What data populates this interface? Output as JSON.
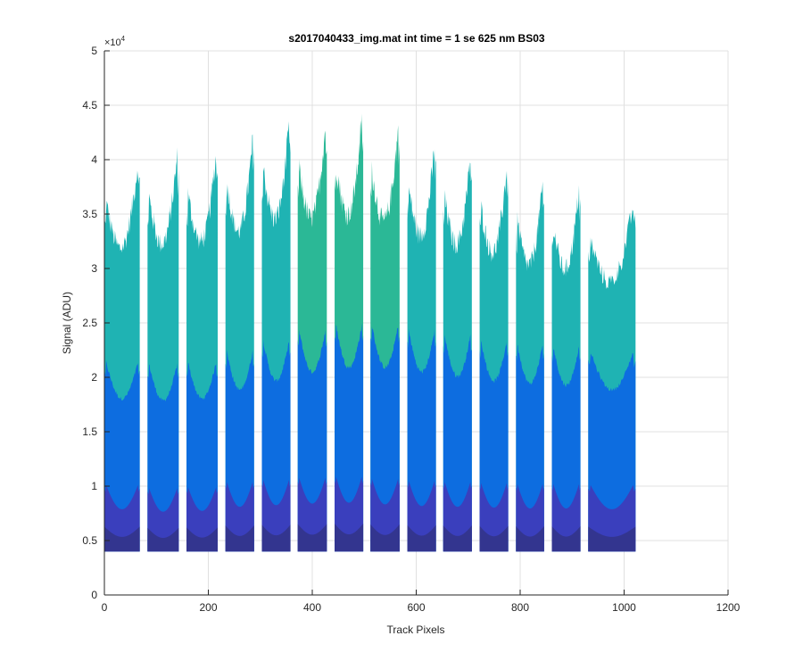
{
  "chart_data": {
    "type": "area",
    "title": "s2017040433_img.mat int time = 1 se  625 nm BS03",
    "xlabel": "Track Pixels",
    "ylabel": "Signal (ADU)",
    "y_multiplier_label": "×10",
    "y_multiplier_exponent": "4",
    "xlim": [
      0,
      1200
    ],
    "ylim": [
      0,
      50000
    ],
    "x_ticks": [
      0,
      200,
      400,
      600,
      800,
      1000,
      1200
    ],
    "x_tick_labels": [
      "0",
      "200",
      "400",
      "600",
      "800",
      "1000",
      "1200"
    ],
    "y_ticks": [
      0,
      5000,
      10000,
      15000,
      20000,
      25000,
      30000,
      35000,
      40000,
      45000,
      50000
    ],
    "y_tick_labels": [
      "0",
      "0.5",
      "1",
      "1.5",
      "2",
      "2.5",
      "3",
      "3.5",
      "4",
      "4.5",
      "5"
    ],
    "grid": true,
    "legend": "none",
    "baseline": 4000,
    "segments": [
      {
        "x_start": 0,
        "x_end": 68,
        "peak": 41000,
        "level_top": 22000,
        "level_mid": 10500
      },
      {
        "x_start": 83,
        "x_end": 143,
        "peak": 41500,
        "level_top": 21800,
        "level_mid": 10200
      },
      {
        "x_start": 158,
        "x_end": 218,
        "peak": 41800,
        "level_top": 22000,
        "level_mid": 10300
      },
      {
        "x_start": 233,
        "x_end": 288,
        "peak": 43000,
        "level_top": 23000,
        "level_mid": 10800
      },
      {
        "x_start": 303,
        "x_end": 358,
        "peak": 44500,
        "level_top": 24000,
        "level_mid": 11000
      },
      {
        "x_start": 372,
        "x_end": 428,
        "peak": 44500,
        "level_top": 25000,
        "level_mid": 11200
      },
      {
        "x_start": 443,
        "x_end": 498,
        "peak": 45000,
        "level_top": 25500,
        "level_mid": 11300
      },
      {
        "x_start": 512,
        "x_end": 568,
        "peak": 44200,
        "level_top": 25500,
        "level_mid": 11100
      },
      {
        "x_start": 583,
        "x_end": 638,
        "peak": 42500,
        "level_top": 25000,
        "level_mid": 10900
      },
      {
        "x_start": 652,
        "x_end": 707,
        "peak": 41500,
        "level_top": 24500,
        "level_mid": 10800
      },
      {
        "x_start": 722,
        "x_end": 777,
        "peak": 40500,
        "level_top": 24000,
        "level_mid": 10700
      },
      {
        "x_start": 792,
        "x_end": 846,
        "peak": 39000,
        "level_top": 23700,
        "level_mid": 10600
      },
      {
        "x_start": 861,
        "x_end": 916,
        "peak": 38500,
        "level_top": 23500,
        "level_mid": 10600
      },
      {
        "x_start": 931,
        "x_end": 1022,
        "peak": 37000,
        "level_top": 23000,
        "level_mid": 10500
      }
    ],
    "colors": {
      "layer_top_teal": "#1fb3b3",
      "layer_top_green": "#2bb896",
      "layer_mid_blue": "#0d6de0",
      "layer_low_indigo": "#3a3fbd",
      "layer_base_navy": "#33358f",
      "grid": "#e0e0e0",
      "axis": "#262626"
    }
  }
}
